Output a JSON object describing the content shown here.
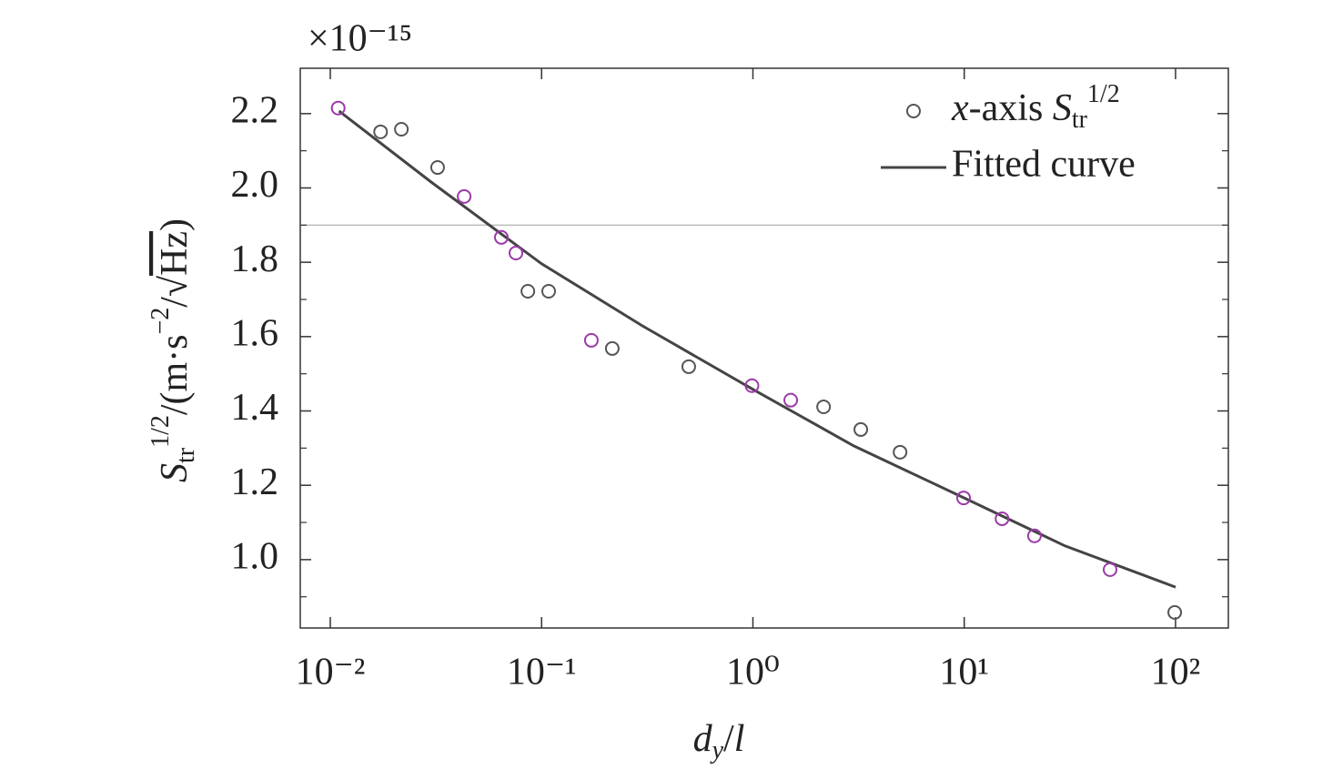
{
  "chart_data": {
    "type": "scatter",
    "multiplier": "×10⁻¹⁵",
    "x_label": [
      {
        "t": "d",
        "i": true
      },
      {
        "t": "y",
        "s": "sub",
        "i": true
      },
      {
        "t": "/"
      },
      {
        "t": "l",
        "i": true
      }
    ],
    "y_label": [
      {
        "t": "S",
        "i": true
      },
      {
        "t": "tr",
        "s": "sub"
      },
      {
        "t": "1/2",
        "s": "sup"
      },
      {
        "t": "/(m·s"
      },
      {
        "t": "−2",
        "s": "sup"
      },
      {
        "t": "/√"
      },
      {
        "t": "Hz",
        "o": true
      },
      {
        "t": ")"
      }
    ],
    "xlog": true,
    "xlim": [
      0.00721,
      177.8
    ],
    "ylim": [
      0.816,
      2.322
    ],
    "xticks": [
      {
        "value": 0.01,
        "label": "10⁻²"
      },
      {
        "value": 0.1,
        "label": "10⁻¹"
      },
      {
        "value": 1,
        "label": "10⁰"
      },
      {
        "value": 10,
        "label": "10¹"
      },
      {
        "value": 100,
        "label": "10²"
      }
    ],
    "yticks": [
      {
        "value": 1,
        "label": "1.0"
      },
      1.2,
      1.4,
      1.6,
      1.8,
      {
        "value": 2,
        "label": "2.0"
      },
      2.2
    ],
    "yminorticks": [
      0.9,
      1.1,
      1.3,
      1.5,
      1.7,
      1.9,
      2.1
    ],
    "hline": 1.9,
    "legend": "upper right",
    "series": [
      {
        "name": [
          {
            "t": "x",
            "i": true
          },
          {
            "t": "-axis "
          },
          {
            "t": "S",
            "i": true
          },
          {
            "t": "tr",
            "s": "sub"
          },
          {
            "t": "1/2",
            "s": "sup"
          }
        ],
        "type": "scatter",
        "color": "#555555",
        "point_colors": [
          "#9b3aa8",
          "#555555",
          "#555555",
          "#555555",
          "#9b3aa8",
          "#9b3aa8",
          "#9b3aa8",
          "#555555",
          "#555555",
          "#9b3aa8",
          "#555555",
          "#555555",
          "#9b3aa8",
          "#9b3aa8",
          "#555555",
          "#555555",
          "#555555",
          "#9b3aa8",
          "#9b3aa8",
          "#9b3aa8",
          "#9b3aa8",
          "#555555"
        ],
        "x": [
          0.0109,
          0.0173,
          0.0217,
          0.0322,
          0.043,
          0.0645,
          0.0756,
          0.0861,
          0.108,
          0.172,
          0.216,
          0.497,
          0.99,
          1.51,
          2.16,
          3.24,
          4.97,
          9.93,
          15.1,
          21.5,
          49.0,
          99.1
        ],
        "values": [
          2.215,
          2.151,
          2.158,
          2.055,
          1.977,
          1.867,
          1.825,
          1.722,
          1.722,
          1.59,
          1.568,
          1.519,
          1.468,
          1.429,
          1.411,
          1.35,
          1.289,
          1.166,
          1.11,
          1.064,
          0.973,
          0.858
        ]
      },
      {
        "name": "Fitted curve",
        "type": "line",
        "color": "#444444",
        "x": [
          0.011,
          0.03,
          0.1,
          0.3,
          1,
          3,
          10,
          30,
          100
        ],
        "values": [
          2.207,
          2.016,
          1.796,
          1.629,
          1.458,
          1.306,
          1.166,
          1.037,
          0.926
        ]
      }
    ]
  }
}
